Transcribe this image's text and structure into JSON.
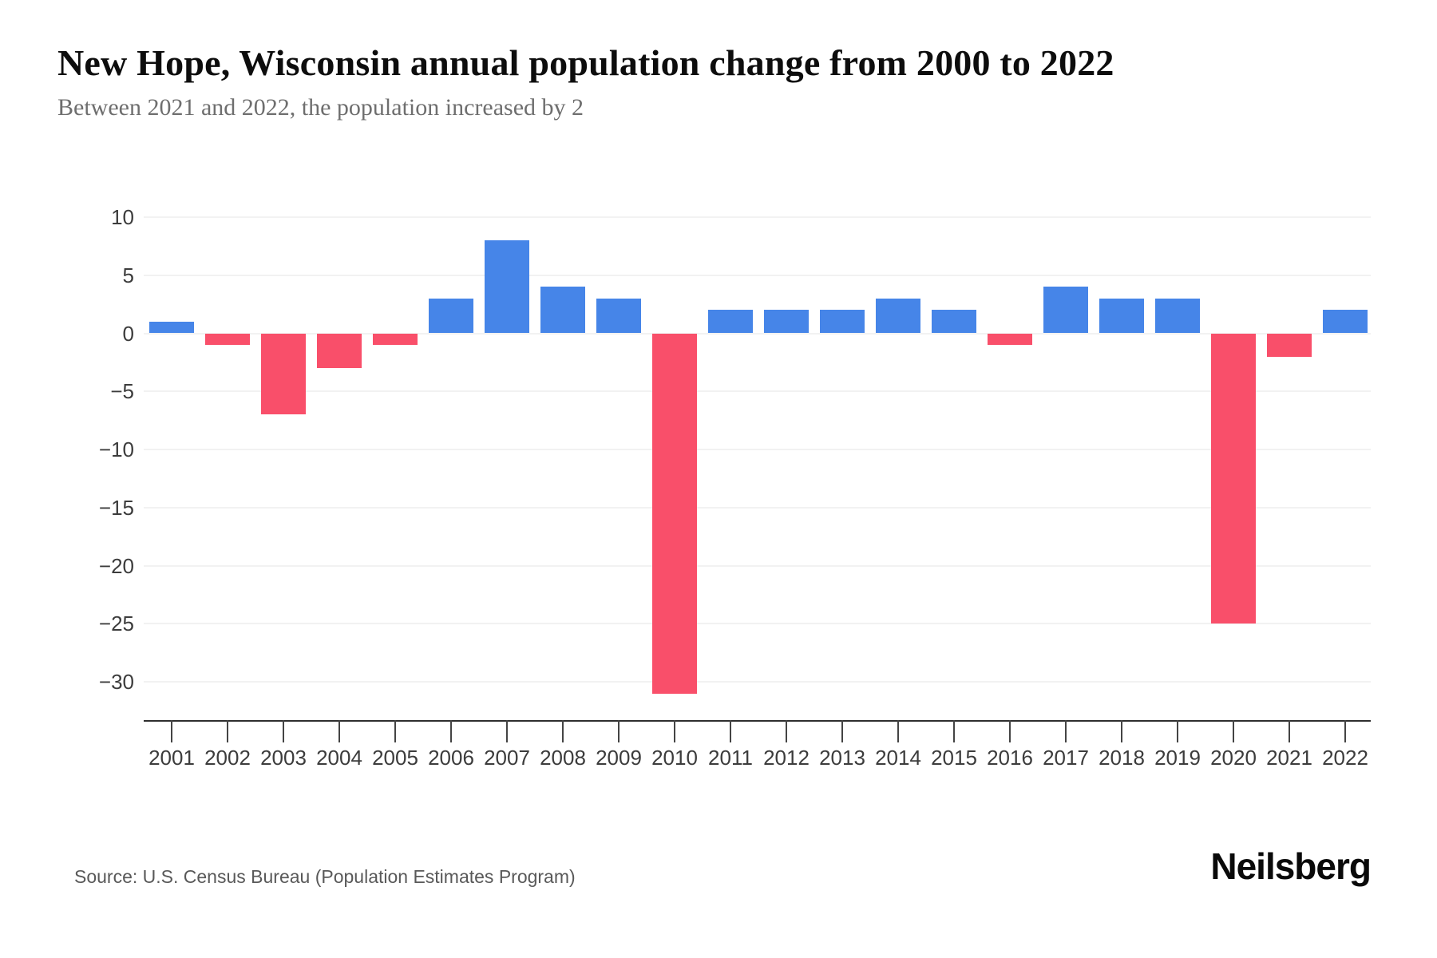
{
  "header": {
    "title": "New Hope, Wisconsin annual population change from 2000 to 2022",
    "subtitle": "Between 2021 and 2022, the population increased by 2"
  },
  "footer": {
    "source": "Source: U.S. Census Bureau (Population Estimates Program)",
    "brand": "Neilsberg"
  },
  "chart_data": {
    "type": "bar",
    "title": "New Hope, Wisconsin annual population change from 2000 to 2022",
    "subtitle": "Between 2021 and 2022, the population increased by 2",
    "categories": [
      "2001",
      "2002",
      "2003",
      "2004",
      "2005",
      "2006",
      "2007",
      "2008",
      "2009",
      "2010",
      "2011",
      "2012",
      "2013",
      "2014",
      "2015",
      "2016",
      "2017",
      "2018",
      "2019",
      "2020",
      "2021",
      "2022"
    ],
    "values": [
      1,
      -1,
      -7,
      -3,
      -1,
      3,
      8,
      4,
      3,
      -31,
      2,
      2,
      2,
      3,
      2,
      -1,
      4,
      3,
      3,
      -25,
      -2,
      2
    ],
    "yticks": [
      10,
      5,
      0,
      -5,
      -10,
      -15,
      -20,
      -25,
      -30
    ],
    "ylim": [
      -33.3,
      12.9
    ],
    "xlabel": "",
    "ylabel": "",
    "grid": true,
    "legend": "none",
    "positive_color": "#4685E8",
    "negative_color": "#F94F6A",
    "gridline_color": "#f2f2f2",
    "axis_color": "#2f2f2f",
    "label_color": "#3c3c3c"
  }
}
